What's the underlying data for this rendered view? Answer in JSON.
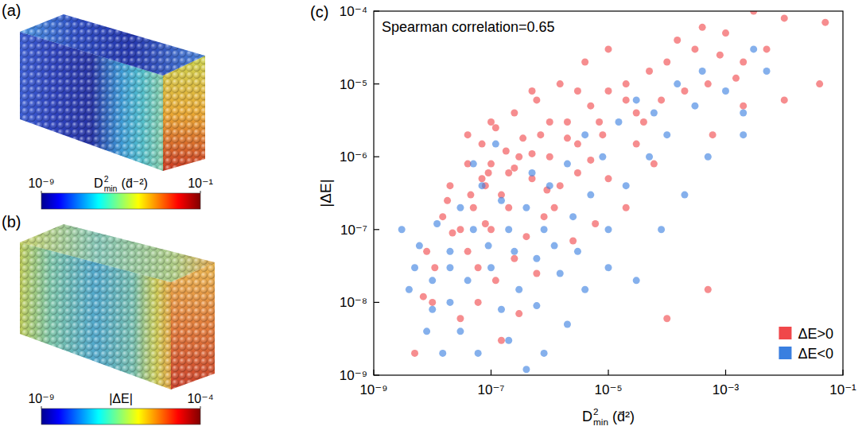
{
  "panels": [
    {
      "label": "(a)",
      "colorbar": {
        "title": {
          "base": "D",
          "sup": "2",
          "sub": "min",
          "unit": "(d̄⁻²)"
        },
        "range": [
          1e-09,
          0.1
        ],
        "ticks": [
          {
            "value": 1e-09,
            "label": "10⁻⁹"
          },
          {
            "value": 0.1,
            "label": "10⁻¹"
          }
        ]
      }
    },
    {
      "label": "(b)",
      "colorbar": {
        "title": "|ΔE|",
        "range": [
          1e-09,
          0.0001
        ],
        "ticks": [
          {
            "value": 1e-09,
            "label": "10⁻⁹"
          },
          {
            "value": 0.0001,
            "label": "10⁻⁴"
          }
        ]
      }
    }
  ],
  "chart_data": {
    "label": "(c)",
    "type": "scatter",
    "annotation": "Spearman correlation=0.65",
    "x_label": {
      "base": "D",
      "sup": "2",
      "sub": "min",
      "unit": "(d̄²)"
    },
    "y_label": "|ΔE|",
    "log": true,
    "xlim": [
      1e-09,
      0.1
    ],
    "ylim": [
      1e-09,
      0.0001
    ],
    "xticks": [
      {
        "value": 1e-09,
        "label": "10⁻⁹"
      },
      {
        "value": 1e-07,
        "label": "10⁻⁷"
      },
      {
        "value": 1e-05,
        "label": "10⁻⁵"
      },
      {
        "value": 0.001,
        "label": "10⁻³"
      },
      {
        "value": 0.1,
        "label": "10⁻¹"
      }
    ],
    "yticks": [
      {
        "value": 1e-09,
        "label": "10⁻⁹"
      },
      {
        "value": 1e-08,
        "label": "10⁻⁸"
      },
      {
        "value": 1e-07,
        "label": "10⁻⁷"
      },
      {
        "value": 1e-06,
        "label": "10⁻⁶"
      },
      {
        "value": 1e-05,
        "label": "10⁻⁵"
      },
      {
        "value": 0.0001,
        "label": "10⁻⁴"
      }
    ],
    "legend": "lower right",
    "series": [
      {
        "name": "ΔE>0",
        "color": "#f0474a",
        "x": [
          3e-08,
          5e-08,
          8e-08,
          1e-07,
          1.5e-07,
          2e-07,
          3e-07,
          4e-08,
          6e-08,
          1e-07,
          2e-07,
          5e-07,
          7e-07,
          1e-06,
          2e-06,
          3e-06,
          5e-06,
          8e-06,
          1e-05,
          2e-05,
          3e-05,
          5e-05,
          0.0001,
          0.0002,
          0.0003,
          0.0005,
          0.001,
          0.002,
          0.003,
          0.01,
          0.05,
          0.04,
          0.01,
          0.002,
          0.0006,
          0.0005,
          0.0001,
          2e-05,
          1e-05,
          6e-06,
          3e-06,
          1.5e-06,
          8e-07,
          4e-07,
          2.5e-07,
          1.2e-07,
          6e-08,
          3e-08,
          1e-08,
          5e-09,
          8e-09,
          1.5e-08,
          2e-08,
          4e-08,
          7e-08,
          1.2e-07,
          2.5e-07,
          6e-07,
          1.5e-06,
          4e-06,
          1e-05,
          5e-06,
          9e-07,
          3.5e-07,
          1.8e-07,
          9e-08,
          4.5e-08,
          2.2e-08,
          1.1e-08,
          7e-09,
          3e-06,
          7e-06,
          2e-05,
          4e-05,
          8e-05,
          0.00015,
          0.0004,
          0.0008,
          0.0015,
          0.005,
          1.2e-06,
          2.5e-06,
          6e-07,
          3e-07,
          1.5e-07,
          8e-08,
          2.5e-07,
          5e-07,
          1e-06,
          2e-06,
          4e-08,
          1e-07,
          5e-07,
          3e-05,
          6e-05,
          7e-08,
          1.8e-08
        ],
        "values": [
          1e-07,
          2e-07,
          4e-07,
          1e-07,
          3e-07,
          6e-07,
          1e-06,
          5e-08,
          3e-08,
          8e-07,
          2e-07,
          5e-07,
          2e-06,
          1e-06,
          3e-06,
          1.5e-06,
          5e-06,
          2e-06,
          8e-06,
          1e-05,
          4e-06,
          1.5e-05,
          2e-05,
          8e-06,
          3e-05,
          1e-05,
          5e-05,
          2e-05,
          0.0001,
          8e-05,
          7e-05,
          1e-05,
          6e-06,
          5e-06,
          2e-06,
          1.5e-08,
          6e-09,
          2e-07,
          5e-07,
          1.2e-07,
          6e-07,
          4e-07,
          1.5e-07,
          8e-08,
          4e-08,
          2e-08,
          1e-08,
          6e-09,
          1e-08,
          2e-09,
          5e-08,
          1.5e-07,
          4e-07,
          8e-07,
          1.5e-06,
          2.5e-06,
          4e-06,
          6e-06,
          1e-05,
          2e-05,
          3e-05,
          9e-07,
          3.5e-07,
          1.8e-06,
          1.2e-06,
          6e-07,
          3e-07,
          9e-08,
          3e-08,
          1.2e-08,
          8e-06,
          3e-06,
          6e-06,
          3e-06,
          6e-06,
          4e-05,
          6e-05,
          2.5e-05,
          1.2e-05,
          3e-05,
          2e-07,
          7e-08,
          2.5e-08,
          7e-09,
          3e-09,
          1.2e-07,
          7e-07,
          1.1e-06,
          3e-06,
          1.8e-06,
          2e-06,
          3e-06,
          8e-06,
          1.5e-06,
          8e-07,
          5e-07,
          2.5e-07
        ]
      },
      {
        "name": "ΔE<0",
        "color": "#3a7fe0",
        "x": [
          2e-08,
          5e-08,
          1e-07,
          2e-07,
          4e-07,
          8e-07,
          1e-08,
          3e-09,
          5e-09,
          1e-08,
          3e-08,
          6e-08,
          1.5e-07,
          3e-07,
          6e-07,
          1.2e-06,
          2.5e-06,
          5e-06,
          1e-05,
          2e-05,
          5e-05,
          0.0001,
          0.0003,
          0.001,
          0.003,
          0.005,
          0.002,
          0.0005,
          0.0002,
          8e-05,
          3e-05,
          1e-05,
          4e-06,
          2e-06,
          8e-07,
          4e-07,
          1.5e-07,
          7e-08,
          3e-08,
          1.2e-08,
          6e-09,
          4e-09,
          2e-08,
          9e-08,
          2.5e-07,
          5e-07,
          1e-06,
          2e-06,
          4e-06,
          8e-06,
          1.5e-05,
          3e-05,
          6e-05,
          0.00015,
          0.0004,
          0.002,
          1.2e-07,
          5e-08,
          2e-08,
          8e-09,
          1.5e-08,
          4e-08,
          2e-07,
          6e-07,
          1.5e-06,
          3e-06
        ],
        "values": [
          5e-08,
          1e-07,
          3e-08,
          1e-07,
          2e-07,
          1e-07,
          2e-08,
          1e-07,
          3e-08,
          8e-09,
          4e-09,
          2e-09,
          8e-09,
          1.5e-08,
          4e-08,
          6e-08,
          1.5e-07,
          3e-07,
          1e-07,
          4e-07,
          1e-06,
          2e-06,
          5e-06,
          8e-06,
          3e-05,
          1.5e-05,
          4e-06,
          1e-06,
          3e-07,
          1e-07,
          2e-08,
          3e-08,
          1.5e-08,
          5e-09,
          2e-09,
          1.2e-09,
          2.5e-07,
          4e-07,
          2e-07,
          1.2e-07,
          6e-08,
          1.5e-08,
          1e-08,
          6e-08,
          5e-08,
          6e-07,
          4e-07,
          8e-07,
          2e-06,
          1e-06,
          3e-06,
          6e-06,
          4e-06,
          1e-05,
          1.5e-05,
          2e-06,
          1.5e-06,
          8e-07,
          3e-08,
          4e-09,
          2e-09,
          2e-08,
          3e-09,
          9e-09,
          2.5e-08,
          5e-08
        ]
      }
    ]
  }
}
